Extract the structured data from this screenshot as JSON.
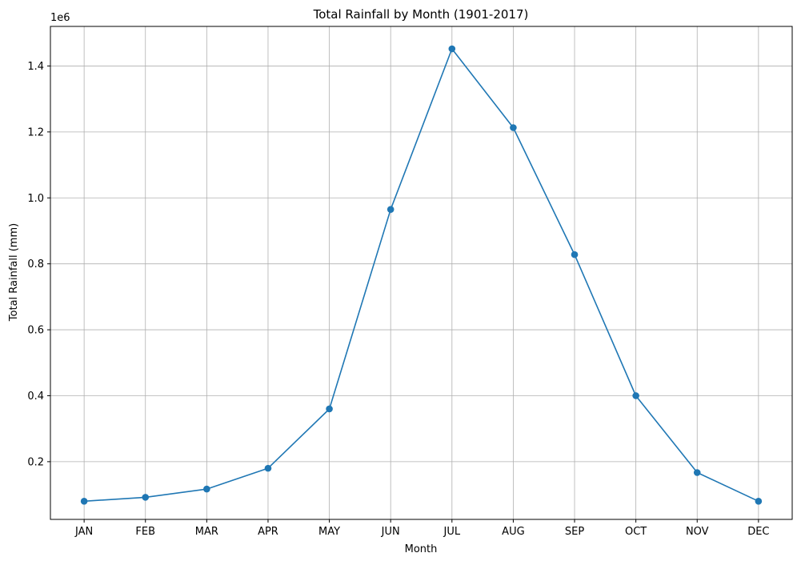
{
  "chart_data": {
    "type": "line",
    "title": "Total Rainfall by Month (1901-2017)",
    "xlabel": "Month",
    "ylabel": "Total Rainfall (mm)",
    "y_offset_label": "1e6",
    "categories": [
      "JAN",
      "FEB",
      "MAR",
      "APR",
      "MAY",
      "JUN",
      "JUL",
      "AUG",
      "SEP",
      "OCT",
      "NOV",
      "DEC"
    ],
    "series": [
      {
        "values": [
          80000,
          92000,
          117000,
          180000,
          360000,
          965000,
          1452000,
          1213000,
          828000,
          400000,
          167000,
          80000
        ],
        "color": "#1f77b4",
        "marker": "circle"
      }
    ],
    "y_ticks": [
      0.2,
      0.4,
      0.6,
      0.8,
      1.0,
      1.2,
      1.4
    ],
    "y_tick_labels": [
      "0.2",
      "0.4",
      "0.6",
      "0.8",
      "1.0",
      "1.2",
      "1.4"
    ],
    "ylim": [
      25000,
      1520000
    ],
    "grid": true
  }
}
